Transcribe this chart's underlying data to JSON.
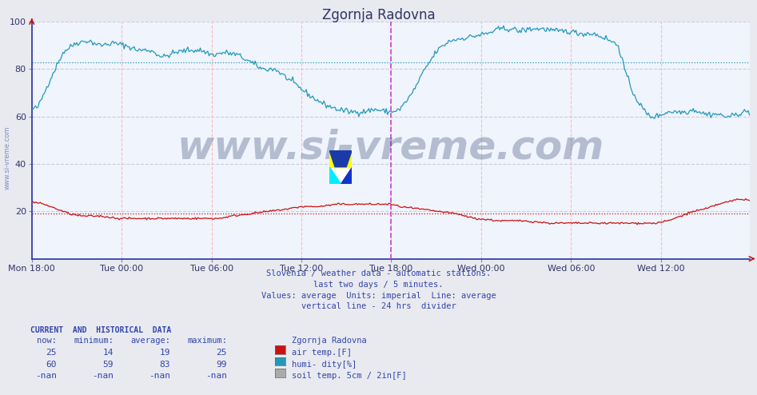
{
  "title": "Zgornja Radovna",
  "bg_color": "#e8eaf0",
  "plot_bg_color": "#f0f4fc",
  "x_tick_labels": [
    "Mon 18:00",
    "Tue 00:00",
    "Tue 06:00",
    "Tue 12:00",
    "Tue 18:00",
    "Wed 00:00",
    "Wed 06:00",
    "Wed 12:00"
  ],
  "x_tick_positions": [
    0,
    72,
    144,
    216,
    288,
    360,
    432,
    504
  ],
  "n_points": 576,
  "ylim": [
    0,
    100
  ],
  "yticks": [
    20,
    40,
    60,
    80,
    100
  ],
  "humidity_color": "#2299bb",
  "temp_color": "#cc1111",
  "vline_color": "#cc44cc",
  "vline_x": 288,
  "humidity_avg_value": 83,
  "temp_avg_value": 19,
  "grid_v_color": "#ffbbbb",
  "grid_h_color": "#ccccdd",
  "axis_color": "#2233aa",
  "footnote_lines": [
    "Slovenia / weather data - automatic stations.",
    "last two days / 5 minutes.",
    "Values: average  Units: imperial  Line: average",
    "vertical line - 24 hrs  divider"
  ],
  "table_header_line": "CURRENT  AND  HISTORICAL  DATA",
  "col_headers": [
    "now:",
    "minimum:",
    "average:",
    "maximum:",
    "Zgornja Radovna"
  ],
  "table_rows": [
    {
      "now": "25",
      "min": "14",
      "avg": "19",
      "max": "25",
      "label": "air temp.[F]",
      "color": "#cc1111"
    },
    {
      "now": "60",
      "min": "59",
      "avg": "83",
      "max": "99",
      "label": "humi- dity[%]",
      "color": "#2299bb"
    },
    {
      "now": "-nan",
      "min": "-nan",
      "avg": "-nan",
      "max": "-nan",
      "label": "soil temp. 5cm / 2in[F]",
      "color": "#aaaaaa"
    }
  ],
  "watermark": "www.si-vreme.com",
  "watermark_color": "#1a2f60",
  "watermark_alpha": 0.28,
  "watermark_fontsize": 36,
  "sidebar_text": "www.si-vreme.com",
  "logo_yellow": "#ffff00",
  "logo_cyan": "#00eeff",
  "logo_blue": "#1133cc",
  "logo_darkblue": "#1a3aaa"
}
